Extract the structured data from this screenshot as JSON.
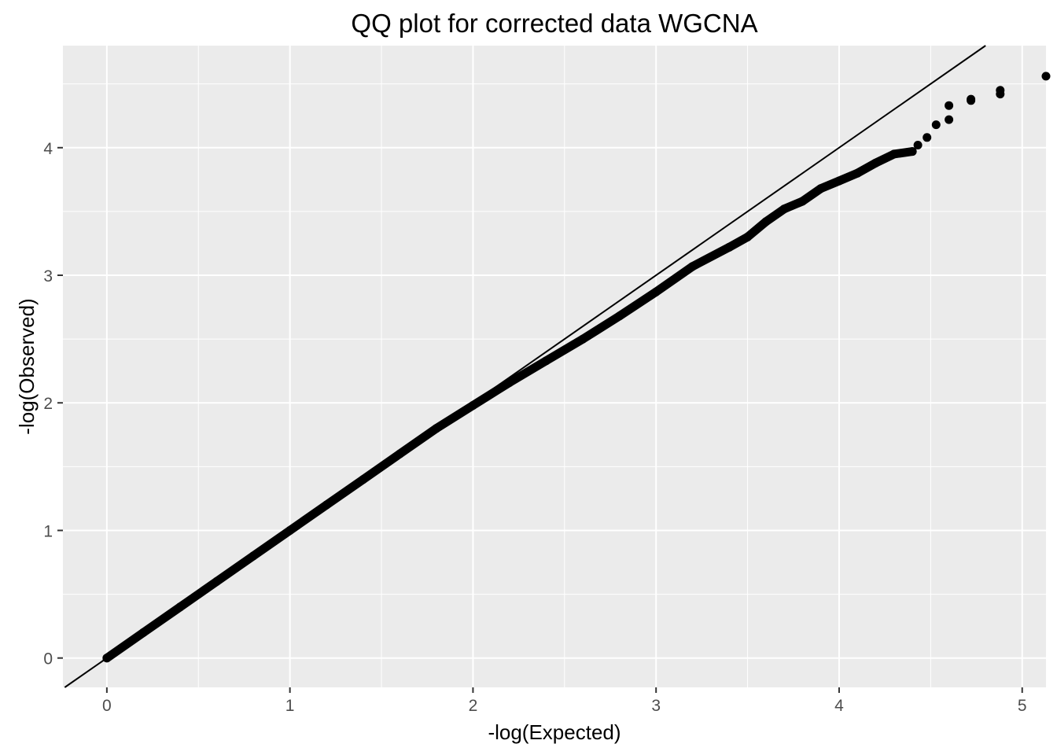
{
  "chart_data": {
    "type": "scatter",
    "title": "QQ plot for corrected data WGCNA",
    "xlabel": "-log(Expected)",
    "ylabel": "-log(Observed)",
    "xlim": [
      -0.24,
      5.13
    ],
    "ylim": [
      -0.23,
      4.8
    ],
    "x_ticks": [
      0,
      1,
      2,
      3,
      4,
      5
    ],
    "y_ticks": [
      0,
      1,
      2,
      3,
      4
    ],
    "x_tick_labels": [
      "0",
      "1",
      "2",
      "3",
      "4",
      "5"
    ],
    "y_tick_labels": [
      "0",
      "1",
      "2",
      "3",
      "4"
    ],
    "grid": true,
    "reference_line": {
      "slope": 1,
      "intercept": 0
    },
    "points": [
      [
        0.0,
        0.0
      ],
      [
        0.2,
        0.2
      ],
      [
        0.4,
        0.4
      ],
      [
        0.6,
        0.6
      ],
      [
        0.8,
        0.8
      ],
      [
        1.0,
        1.0
      ],
      [
        1.2,
        1.2
      ],
      [
        1.4,
        1.4
      ],
      [
        1.6,
        1.6
      ],
      [
        1.8,
        1.8
      ],
      [
        2.0,
        1.98
      ],
      [
        2.2,
        2.16
      ],
      [
        2.4,
        2.33
      ],
      [
        2.6,
        2.5
      ],
      [
        2.8,
        2.68
      ],
      [
        3.0,
        2.87
      ],
      [
        3.2,
        3.07
      ],
      [
        3.4,
        3.22
      ],
      [
        3.5,
        3.3
      ],
      [
        3.6,
        3.42
      ],
      [
        3.7,
        3.52
      ],
      [
        3.8,
        3.58
      ],
      [
        3.9,
        3.68
      ],
      [
        4.0,
        3.74
      ],
      [
        4.1,
        3.8
      ],
      [
        4.2,
        3.88
      ],
      [
        4.3,
        3.95
      ],
      [
        4.4,
        3.97
      ],
      [
        4.43,
        4.02
      ],
      [
        4.48,
        4.08
      ],
      [
        4.53,
        4.18
      ],
      [
        4.6,
        4.22
      ],
      [
        4.6,
        4.33
      ],
      [
        4.72,
        4.37
      ],
      [
        4.72,
        4.38
      ],
      [
        4.88,
        4.42
      ],
      [
        4.88,
        4.45
      ],
      [
        5.13,
        4.56
      ]
    ]
  }
}
